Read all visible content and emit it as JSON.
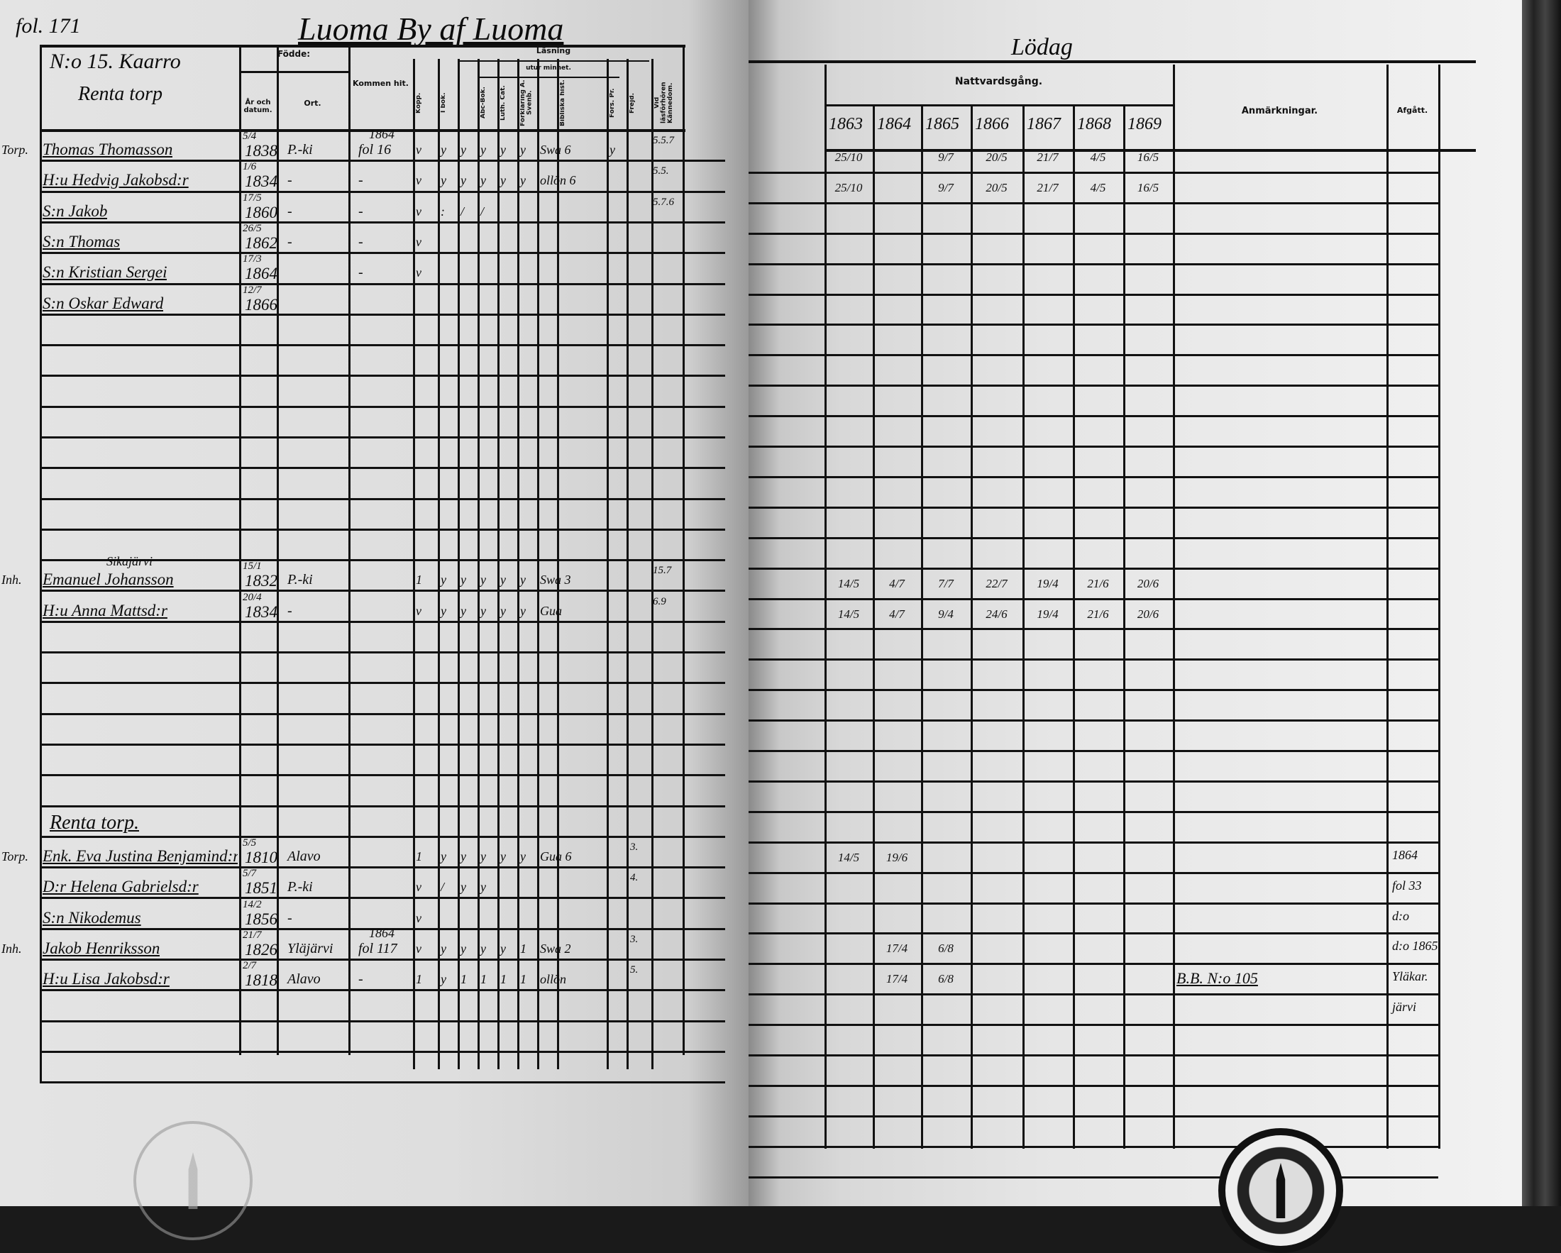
{
  "left": {
    "folio": "fol. 171",
    "village_title": "Luoma By af Luoma",
    "household": "N:o 15. Kaarro",
    "sub_place": "Renta torp",
    "headers": {
      "born": "Födde:",
      "born_date": "År och datum.",
      "born_place": "Ort.",
      "arrived": "Kommen hit.",
      "vaccinated": "Kopp.",
      "reading": "Läsning",
      "reading_book": "I bok.",
      "by_heart": "utur minnet.",
      "abc": "Abc-Bok.",
      "catechism": "Luth. Cat.",
      "explanation": "Förklaring A. Svenb.",
      "bible_history": "Bibliska hist.",
      "church_prayers": "Förs. Pr.",
      "conduct": "Frejd.",
      "knowledge": "Vid läsförhören Kännedom."
    },
    "rows": [
      {
        "margin": "Torp.",
        "name": "Thomas Thomasson",
        "day": "5/4",
        "year": "1838",
        "place": "P.-ki",
        "arrived_top": "1864",
        "arrived": "fol 16",
        "marks": [
          "v",
          "y",
          "y",
          "y",
          "y",
          "y",
          "Swa 6",
          "y"
        ],
        "conduct": "",
        "knowledge": "5.5.7"
      },
      {
        "name": "H:u Hedvig Jakobsd:r",
        "day": "1/6",
        "year": "1834",
        "place": "-",
        "arrived": "-",
        "marks": [
          "v",
          "y",
          "y",
          "y",
          "y",
          "y",
          "ollön 6",
          ""
        ],
        "knowledge": "5.5."
      },
      {
        "name": "S:n Jakob",
        "day": "17/5",
        "year": "1860",
        "place": "-",
        "arrived": "-",
        "marks": [
          "v",
          ":",
          "/",
          "/",
          "",
          "",
          "",
          ""
        ],
        "knowledge": "5.7.6"
      },
      {
        "name": "S:n Thomas",
        "day": "26/5",
        "year": "1862",
        "place": "-",
        "arrived": "-",
        "marks": [
          "v",
          "",
          "",
          "",
          "",
          "",
          "",
          ""
        ]
      },
      {
        "name": "S:n Kristian Sergei",
        "day": "17/3",
        "year": "1864",
        "place": "",
        "arrived": "-",
        "marks": [
          "v",
          "",
          "",
          "",
          "",
          "",
          "",
          ""
        ]
      },
      {
        "name": "S:n Oskar Edward",
        "day": "12/7",
        "year": "1866"
      },
      {},
      {},
      {},
      {},
      {},
      {},
      {},
      {},
      {
        "margin": "Inh.",
        "above": "Sikajärvi",
        "name": "Emanuel Johansson",
        "day": "15/1",
        "year": "1832",
        "place": "P.-ki",
        "marks": [
          "1",
          "y",
          "y",
          "y",
          "y",
          "y",
          "Swa 3",
          ""
        ],
        "knowledge": "15.7"
      },
      {
        "name": "H:u Anna Mattsd:r",
        "day": "20/4",
        "year": "1834",
        "place": "-",
        "marks": [
          "v",
          "y",
          "y",
          "y",
          "y",
          "y",
          "Gua",
          ""
        ],
        "knowledge": "6.9"
      },
      {},
      {},
      {},
      {},
      {},
      {},
      {
        "section": "Renta torp."
      },
      {
        "margin": "Torp.",
        "name": "Enk. Eva Justina Benjamind:r",
        "day": "5/5",
        "year": "1810",
        "place": "Alavo",
        "marks": [
          "1",
          "y",
          "y",
          "y",
          "y",
          "y",
          "Gua 6",
          ""
        ],
        "conduct": "3."
      },
      {
        "margin": "",
        "name": "D:r Helena Gabrielsd:r",
        "day": "5/7",
        "year": "1851",
        "place": "P.-ki",
        "marks": [
          "v",
          "/",
          "y",
          "y",
          "",
          "",
          "",
          ""
        ],
        "conduct": "4."
      },
      {
        "name": "S:n Nikodemus",
        "day": "14/2",
        "year": "1856",
        "place": "-",
        "marks": [
          "v",
          "",
          "",
          "",
          "",
          "",
          "",
          ""
        ]
      },
      {
        "margin": "Inh.",
        "name": "Jakob Henriksson",
        "day": "21/7",
        "year": "1826",
        "place": "Yläjärvi",
        "arrived_top": "1864",
        "arrived": "fol 117",
        "marks": [
          "v",
          "y",
          "y",
          "y",
          "y",
          "1",
          "Swa 2",
          ""
        ],
        "conduct": "3."
      },
      {
        "margin": "",
        "name": "H:u Lisa Jakobsd:r",
        "day": "2/7",
        "year": "1818",
        "place": "Alavo",
        "arrived": "-",
        "marks": [
          "1",
          "y",
          "1",
          "1",
          "1",
          "1",
          "ollön",
          ""
        ],
        "conduct": "5."
      },
      {},
      {}
    ]
  },
  "right": {
    "title": "Lödag",
    "communion_header": "Nattvardsgång.",
    "years": [
      "1863",
      "1864",
      "1865",
      "1866",
      "1867",
      "1868",
      "1869"
    ],
    "remarks_header": "Anmärkningar.",
    "moved_header": "Afgått.",
    "rows": [
      {
        "comm": [
          "25/10",
          "",
          "9/7",
          "20/5",
          "21/7",
          "4/5",
          "16/5"
        ]
      },
      {
        "comm": [
          "25/10",
          "",
          "9/7",
          "20/5",
          "21/7",
          "4/5",
          "16/5"
        ]
      },
      {},
      {},
      {},
      {},
      {},
      {},
      {},
      {},
      {},
      {},
      {},
      {},
      {
        "comm": [
          "14/5",
          "4/7",
          "7/7",
          "22/7",
          "19/4",
          "21/6",
          "20/6"
        ]
      },
      {
        "comm": [
          "14/5",
          "4/7",
          "9/4",
          "24/6",
          "19/4",
          "21/6",
          "20/6"
        ]
      },
      {},
      {},
      {},
      {},
      {},
      {},
      {},
      {
        "comm": [
          "14/5",
          "19/6",
          "",
          "",
          "",
          "",
          ""
        ],
        "moved": "1864"
      },
      {
        "moved": "fol 33"
      },
      {
        "moved": "d:o"
      },
      {
        "comm": [
          "",
          "17/4",
          "6/8",
          "",
          "",
          "",
          ""
        ],
        "moved": "d:o 1865"
      },
      {
        "comm": [
          "",
          "17/4",
          "6/8",
          "",
          "",
          "",
          ""
        ],
        "remarks": "B.B. N:o 105",
        "moved": "Yläkar."
      },
      {
        "moved": "järvi"
      },
      {},
      {},
      {},
      {},
      {}
    ]
  },
  "stamps": {
    "left": "archive-stamp",
    "right": "archive-stamp"
  },
  "colors": {
    "ink": "#111111",
    "paper": "#e4e4e4",
    "book_edge": "#222222"
  }
}
